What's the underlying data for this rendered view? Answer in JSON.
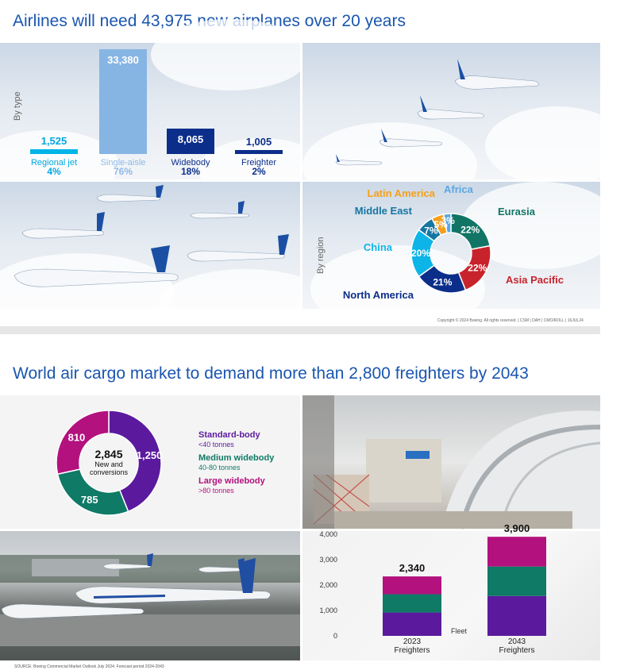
{
  "section1": {
    "title": "Airlines will need 43,975 new airplanes over 20 years",
    "by_type_label": "By type",
    "by_region_label": "By region",
    "copyright": "Copyright © 2024 Boeing. All rights reserved.  |  CSM  |  DAH  |  CMO/ROLL  |  16JUL24"
  },
  "section2": {
    "title": "World air cargo market to demand more than 2,800 freighters by 2043",
    "donut_center_value": "2,845",
    "donut_center_label_line1": "New and",
    "donut_center_label_line2": "conversions",
    "fleet_label": "Fleet",
    "source": "SOURCE: Boeing Commercial Market Outlook July 2024. Forecast period 2024-2043"
  },
  "chart_data": [
    {
      "type": "bar",
      "title": "",
      "categories": [
        "Regional jet",
        "Single-aisle",
        "Widebody",
        "Freighter"
      ],
      "values": [
        1525,
        33380,
        8065,
        1005
      ],
      "value_labels": [
        "1,525",
        "33,380",
        "8,065",
        "1,005"
      ],
      "percent_labels": [
        "4%",
        "76%",
        "18%",
        "2%"
      ],
      "colors": [
        "#00b4e8",
        "#86b5e4",
        "#0b2e8a",
        "#0b2e8a"
      ]
    },
    {
      "type": "pie",
      "title": "",
      "labels": [
        "Eurasia",
        "Asia Pacific",
        "North America",
        "China",
        "Middle East",
        "Latin America",
        "Africa"
      ],
      "values": [
        22,
        22,
        21,
        20,
        7,
        5,
        3
      ],
      "percent_labels": [
        "22%",
        "22%",
        "21%",
        "20%",
        "7%",
        "5%",
        "3%"
      ],
      "colors": [
        "#117566",
        "#c8232c",
        "#0b2e8a",
        "#0cb4e8",
        "#1676a3",
        "#f4a01b",
        "#5aa8e2"
      ]
    },
    {
      "type": "pie",
      "title": "",
      "labels": [
        "Standard-body",
        "Medium widebody",
        "Large widebody"
      ],
      "sublabels": [
        "<40 tonnes",
        "40-80 tonnes",
        ">80 tonnes"
      ],
      "values": [
        1250,
        785,
        810
      ],
      "value_labels": [
        "1,250",
        "785",
        "810"
      ],
      "colors": [
        "#5b1a9e",
        "#0f7a66",
        "#b3117e"
      ]
    },
    {
      "type": "bar",
      "stacked": true,
      "title": "",
      "categories": [
        "2023 Freighters",
        "2043 Freighters"
      ],
      "category_lines": [
        [
          "2023",
          "Freighters"
        ],
        [
          "2043",
          "Freighters"
        ]
      ],
      "totals": [
        2340,
        3900
      ],
      "total_labels": [
        "2,340",
        "3,900"
      ],
      "series": [
        {
          "label_ref": "Standard-body",
          "color": "#5b1a9e",
          "values": [
            920,
            1570
          ]
        },
        {
          "label_ref": "Medium widebody",
          "color": "#0f7a66",
          "values": [
            720,
            1160
          ]
        },
        {
          "label_ref": "Large widebody",
          "color": "#b3117e",
          "values": [
            700,
            1170
          ]
        }
      ],
      "ylim": [
        0,
        4000
      ],
      "yticks": [
        "0",
        "1,000",
        "2,000",
        "3,000",
        "4,000"
      ],
      "ylabel": "",
      "xlabel": ""
    }
  ]
}
